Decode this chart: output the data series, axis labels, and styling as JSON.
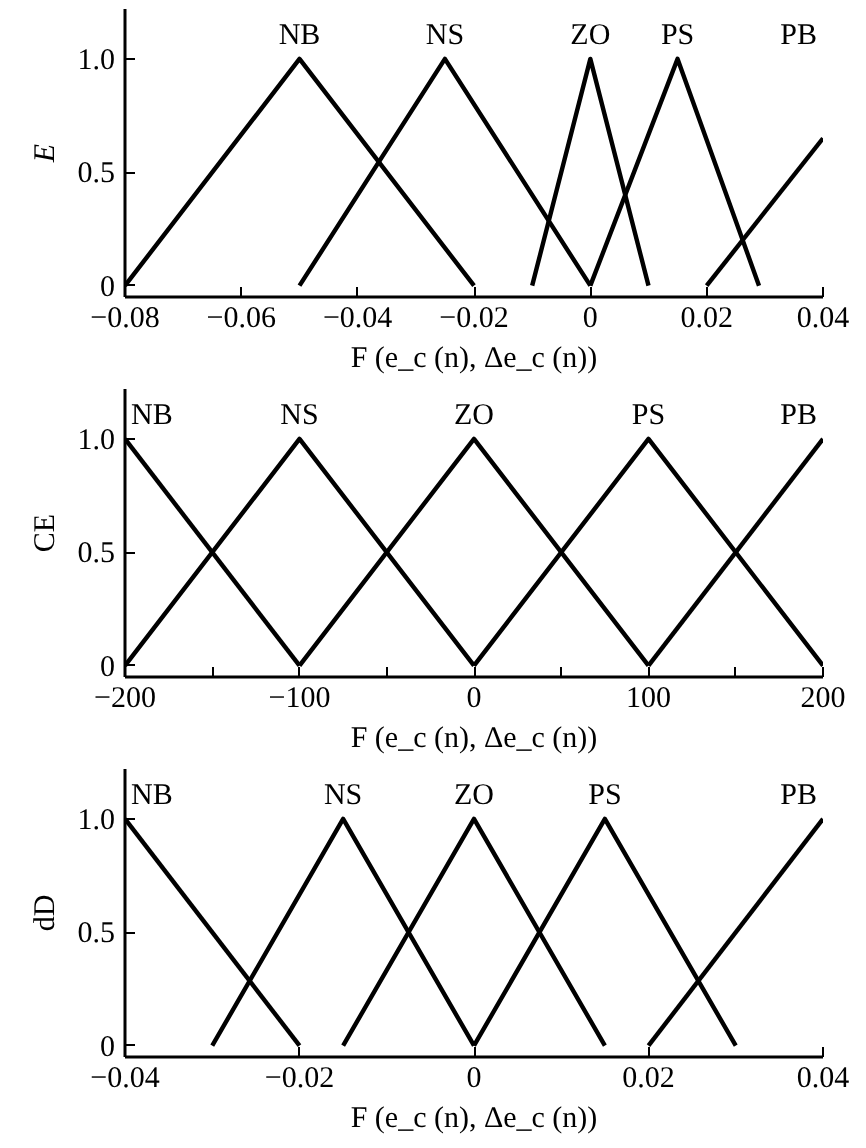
{
  "chart_data": [
    {
      "type": "line",
      "ylabel": "E",
      "xlabel": "F (e_c (n), Δe_c (n))",
      "xlim": [
        -0.08,
        0.04
      ],
      "ylim": [
        -0.05,
        1.22
      ],
      "xticks": [
        {
          "value": -0.08,
          "label": "−0.08"
        },
        {
          "value": -0.06,
          "label": "−0.06"
        },
        {
          "value": -0.04,
          "label": "−0.04"
        },
        {
          "value": -0.02,
          "label": "−0.02"
        },
        {
          "value": 0,
          "label": "0"
        },
        {
          "value": 0.02,
          "label": "0.02"
        },
        {
          "value": 0.04,
          "label": "0.04"
        }
      ],
      "yticks": [
        {
          "value": 0,
          "label": "0"
        },
        {
          "value": 0.5,
          "label": "0.5"
        },
        {
          "value": 1,
          "label": "1.0"
        }
      ],
      "grid": false,
      "marker": "none",
      "line_style": "solid",
      "series": [
        {
          "name": "NB",
          "color": "#000000",
          "x": [
            -0.08,
            -0.05,
            -0.02
          ],
          "values": [
            0,
            1,
            0
          ]
        },
        {
          "name": "NS",
          "color": "#000000",
          "x": [
            -0.05,
            -0.025,
            0
          ],
          "values": [
            0,
            1,
            0
          ]
        },
        {
          "name": "ZO",
          "color": "#000000",
          "x": [
            -0.01,
            0,
            0.01
          ],
          "values": [
            0,
            1,
            0
          ]
        },
        {
          "name": "PS",
          "color": "#000000",
          "x": [
            0,
            0.015,
            0.029
          ],
          "values": [
            0,
            1,
            0
          ]
        },
        {
          "name": "PB",
          "color": "#000000",
          "x": [
            0.02,
            0.04
          ],
          "values": [
            0,
            0.65
          ]
        }
      ]
    },
    {
      "type": "line",
      "ylabel": "CE",
      "xlabel": "F (e_c (n), Δe_c (n))",
      "xlim": [
        -200,
        200
      ],
      "ylim": [
        -0.05,
        1.22
      ],
      "xticks": [
        {
          "value": -200,
          "label": "−200"
        },
        {
          "value": -150,
          "label": null
        },
        {
          "value": -100,
          "label": "−100"
        },
        {
          "value": -50,
          "label": null
        },
        {
          "value": 0,
          "label": "0"
        },
        {
          "value": 50,
          "label": null
        },
        {
          "value": 100,
          "label": "100"
        },
        {
          "value": 150,
          "label": null
        },
        {
          "value": 200,
          "label": "200"
        }
      ],
      "yticks": [
        {
          "value": 0,
          "label": "0"
        },
        {
          "value": 0.5,
          "label": "0.5"
        },
        {
          "value": 1,
          "label": "1.0"
        }
      ],
      "grid": false,
      "marker": "none",
      "line_style": "solid",
      "series": [
        {
          "name": "NB",
          "color": "#000000",
          "x": [
            -200,
            -100
          ],
          "values": [
            1,
            0
          ]
        },
        {
          "name": "NS",
          "color": "#000000",
          "x": [
            -200,
            -100,
            0
          ],
          "values": [
            0,
            1,
            0
          ]
        },
        {
          "name": "ZO",
          "color": "#000000",
          "x": [
            -100,
            0,
            100
          ],
          "values": [
            0,
            1,
            0
          ]
        },
        {
          "name": "PS",
          "color": "#000000",
          "x": [
            0,
            100,
            200
          ],
          "values": [
            0,
            1,
            0
          ]
        },
        {
          "name": "PB",
          "color": "#000000",
          "x": [
            100,
            200
          ],
          "values": [
            0,
            1
          ]
        }
      ]
    },
    {
      "type": "line",
      "ylabel": "dD",
      "xlabel": "F (e_c (n), Δe_c (n))",
      "xlim": [
        -0.04,
        0.04
      ],
      "ylim": [
        -0.05,
        1.22
      ],
      "xticks": [
        {
          "value": -0.04,
          "label": "−0.04"
        },
        {
          "value": -0.02,
          "label": "−0.02"
        },
        {
          "value": 0,
          "label": "0"
        },
        {
          "value": 0.02,
          "label": "0.02"
        },
        {
          "value": 0.04,
          "label": "0.04"
        }
      ],
      "yticks": [
        {
          "value": 0,
          "label": "0"
        },
        {
          "value": 0.5,
          "label": "0.5"
        },
        {
          "value": 1,
          "label": "1.0"
        }
      ],
      "grid": false,
      "marker": "none",
      "line_style": "solid",
      "series": [
        {
          "name": "NB",
          "color": "#000000",
          "x": [
            -0.04,
            -0.02
          ],
          "values": [
            1,
            0
          ]
        },
        {
          "name": "NS",
          "color": "#000000",
          "x": [
            -0.03,
            -0.015,
            0
          ],
          "values": [
            0,
            1,
            0
          ]
        },
        {
          "name": "ZO",
          "color": "#000000",
          "x": [
            -0.015,
            0,
            0.015
          ],
          "values": [
            0,
            1,
            0
          ]
        },
        {
          "name": "PS",
          "color": "#000000",
          "x": [
            0,
            0.015,
            0.03
          ],
          "values": [
            0,
            1,
            0
          ]
        },
        {
          "name": "PB",
          "color": "#000000",
          "x": [
            0.02,
            0.04
          ],
          "values": [
            0,
            1
          ]
        }
      ]
    }
  ]
}
